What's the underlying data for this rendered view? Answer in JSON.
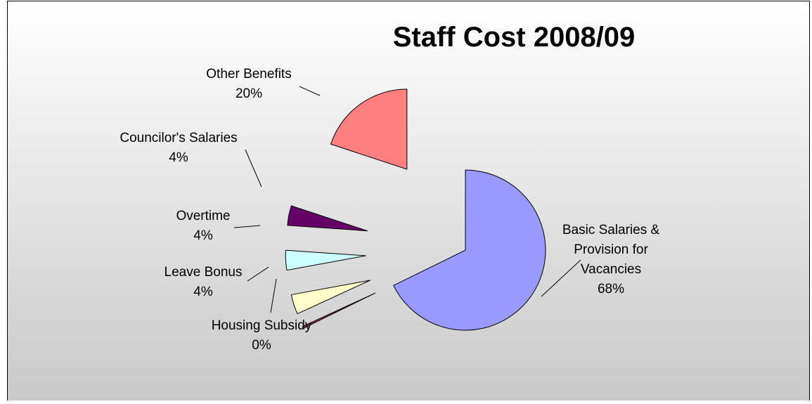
{
  "chart_data": {
    "type": "pie",
    "title": "Staff Cost 2008/09",
    "style": "exploded",
    "slices": [
      {
        "label_lines": [
          "Basic Salaries &",
          "Provision for",
          "Vacancies"
        ],
        "percent_label": "68%",
        "value": 68,
        "color": "#9999ff"
      },
      {
        "label_lines": [
          "Housing Subsidy"
        ],
        "percent_label": "0%",
        "value": 0.4,
        "color": "#993366"
      },
      {
        "label_lines": [
          "Leave Bonus"
        ],
        "percent_label": "4%",
        "value": 4,
        "color": "#ffffcc"
      },
      {
        "label_lines": [
          "Overtime"
        ],
        "percent_label": "4%",
        "value": 4,
        "color": "#ccffff"
      },
      {
        "label_lines": [
          "Councilor's Salaries"
        ],
        "percent_label": "4%",
        "value": 4,
        "color": "#660066"
      },
      {
        "label_lines": [
          "Other Benefits"
        ],
        "percent_label": "20%",
        "value": 20,
        "color": "#ff8080"
      }
    ],
    "background": {
      "gradient_top": "#ffffff",
      "gradient_bottom": "#c8c8c8"
    }
  }
}
